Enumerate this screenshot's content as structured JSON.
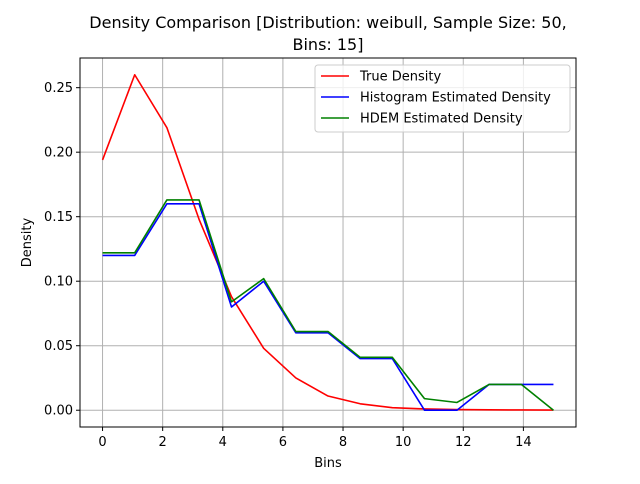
{
  "chart_data": {
    "type": "line",
    "title": [
      "Density Comparison [Distribution: weibull, Sample Size: 50,",
      "Bins: 15]"
    ],
    "xlabel": "Bins",
    "ylabel": "Density",
    "xlim": [
      -0.75,
      15.75
    ],
    "ylim": [
      -0.013,
      0.273
    ],
    "xticks": [
      0,
      2,
      4,
      6,
      8,
      10,
      12,
      14
    ],
    "yticks": [
      0.0,
      0.05,
      0.1,
      0.15,
      0.2,
      0.25
    ],
    "ytick_labels": [
      "0.00",
      "0.05",
      "0.10",
      "0.15",
      "0.20",
      "0.25"
    ],
    "grid": true,
    "legend_position": "top-right",
    "x": [
      0,
      1.07,
      2.14,
      3.21,
      4.29,
      5.36,
      6.43,
      7.5,
      8.57,
      9.64,
      10.71,
      11.79,
      12.86,
      13.93,
      15.0
    ],
    "series": [
      {
        "name": "True Density",
        "color": "#ff0000",
        "values": [
          0.194,
          0.26,
          0.219,
          0.148,
          0.088,
          0.048,
          0.025,
          0.011,
          0.005,
          0.002,
          0.001,
          0.0005,
          0.0003,
          0.0002,
          0.0001
        ]
      },
      {
        "name": "Histogram Estimated Density",
        "color": "#0000ff",
        "values": [
          0.12,
          0.12,
          0.16,
          0.16,
          0.08,
          0.1,
          0.06,
          0.06,
          0.04,
          0.04,
          0.0,
          0.0,
          0.02,
          0.02,
          0.02
        ]
      },
      {
        "name": "HDEM Estimated Density",
        "color": "#008000",
        "values": [
          0.122,
          0.122,
          0.163,
          0.163,
          0.084,
          0.102,
          0.061,
          0.061,
          0.041,
          0.041,
          0.009,
          0.006,
          0.02,
          0.02,
          0.0
        ]
      }
    ]
  }
}
